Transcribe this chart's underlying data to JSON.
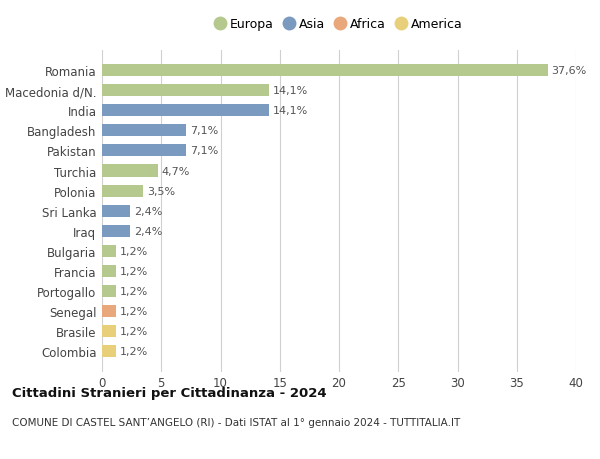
{
  "categories": [
    "Romania",
    "Macedonia d/N.",
    "India",
    "Bangladesh",
    "Pakistan",
    "Turchia",
    "Polonia",
    "Sri Lanka",
    "Iraq",
    "Bulgaria",
    "Francia",
    "Portogallo",
    "Senegal",
    "Brasile",
    "Colombia"
  ],
  "values": [
    37.6,
    14.1,
    14.1,
    7.1,
    7.1,
    4.7,
    3.5,
    2.4,
    2.4,
    1.2,
    1.2,
    1.2,
    1.2,
    1.2,
    1.2
  ],
  "labels": [
    "37,6%",
    "14,1%",
    "14,1%",
    "7,1%",
    "7,1%",
    "4,7%",
    "3,5%",
    "2,4%",
    "2,4%",
    "1,2%",
    "1,2%",
    "1,2%",
    "1,2%",
    "1,2%",
    "1,2%"
  ],
  "continent": [
    "Europa",
    "Europa",
    "Asia",
    "Asia",
    "Asia",
    "Europa",
    "Europa",
    "Asia",
    "Asia",
    "Europa",
    "Europa",
    "Europa",
    "Africa",
    "America",
    "America"
  ],
  "colors": {
    "Europa": "#b5c98e",
    "Asia": "#7a9bbf",
    "Africa": "#e8a87c",
    "America": "#e8d07a"
  },
  "legend_order": [
    "Europa",
    "Asia",
    "Africa",
    "America"
  ],
  "xlim": [
    0,
    40
  ],
  "xticks": [
    0,
    5,
    10,
    15,
    20,
    25,
    30,
    35,
    40
  ],
  "title": "Cittadini Stranieri per Cittadinanza - 2024",
  "subtitle": "COMUNE DI CASTEL SANT’ANGELO (RI) - Dati ISTAT al 1° gennaio 2024 - TUTTITALIA.IT",
  "bg_color": "#ffffff",
  "grid_color": "#d0d0d0",
  "bar_height": 0.6
}
